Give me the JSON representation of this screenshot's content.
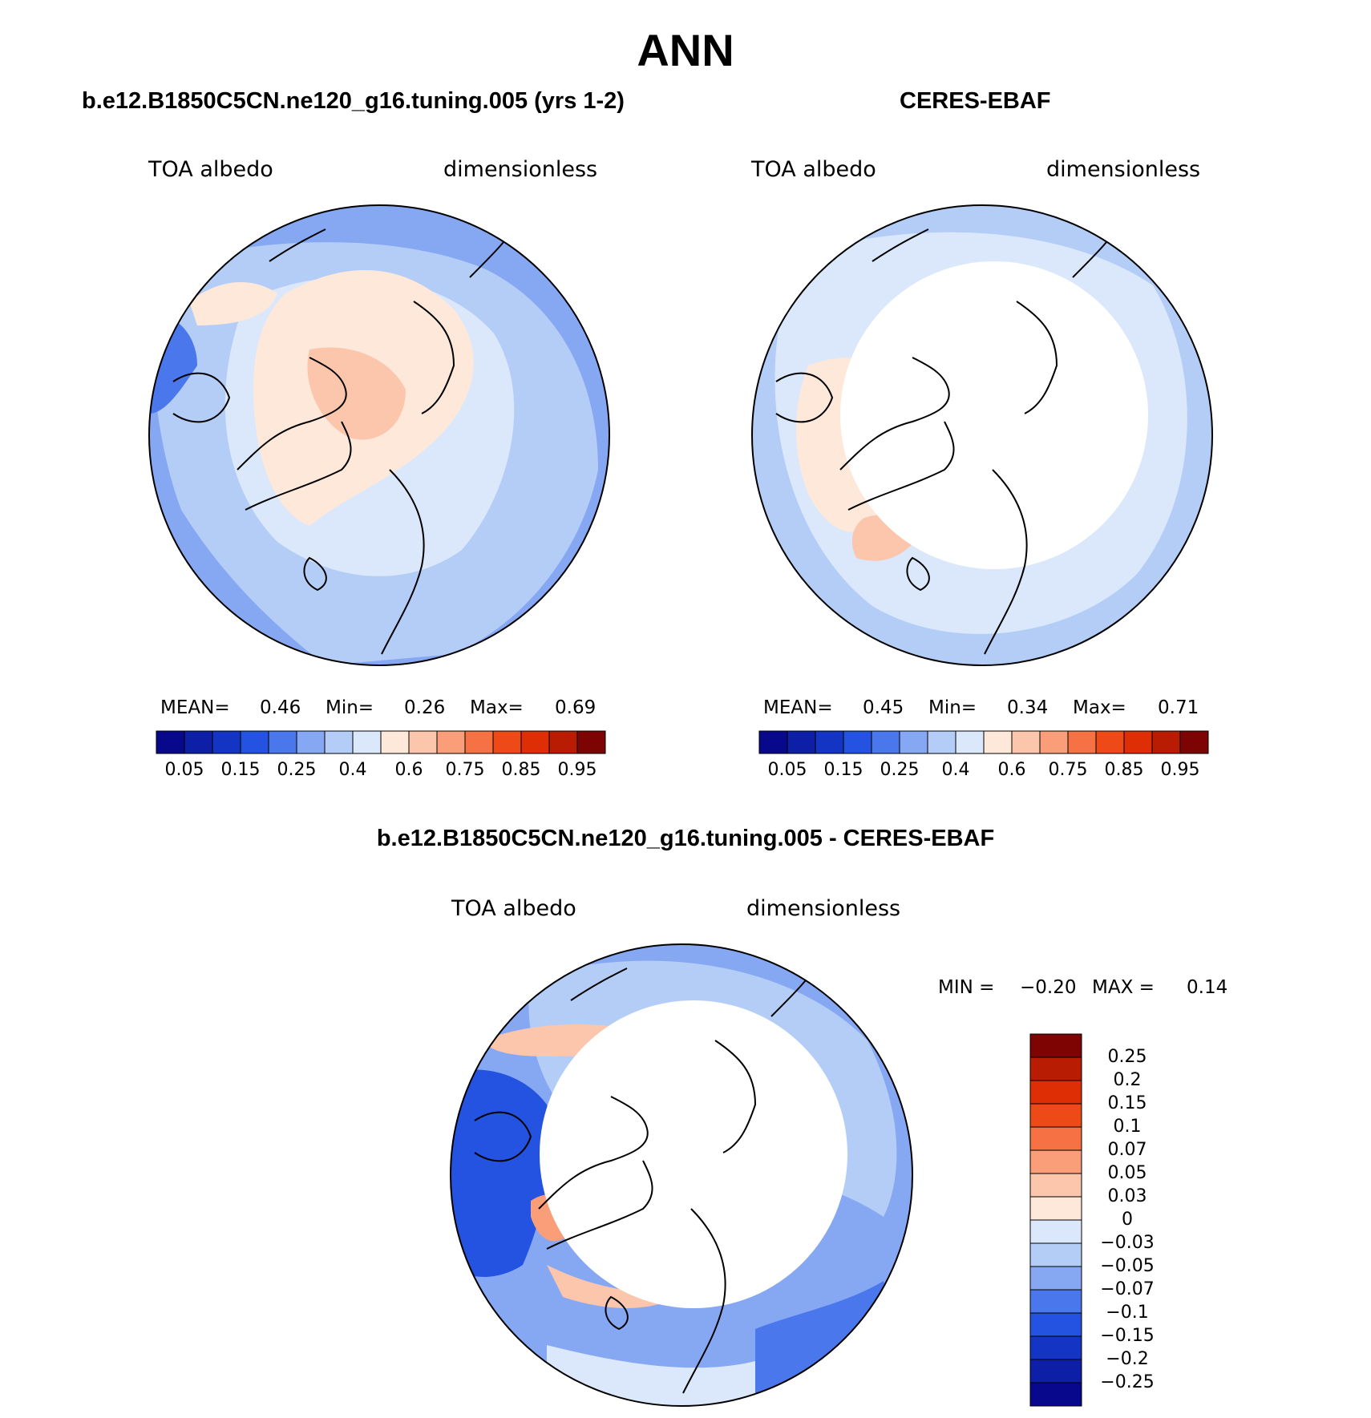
{
  "title": "ANN",
  "panels": [
    {
      "title": "b.e12.B1850C5CN.ne120_g16.tuning.005 (yrs 1-2)",
      "variable": "TOA albedo",
      "units": "dimensionless",
      "stats": {
        "mean_label": "MEAN=",
        "mean": "0.46",
        "min_label": "Min=",
        "min": "0.26",
        "max_label": "Max=",
        "max": "0.69"
      }
    },
    {
      "title": "CERES-EBAF",
      "variable": "TOA albedo",
      "units": "dimensionless",
      "stats": {
        "mean_label": "MEAN=",
        "mean": "0.45",
        "min_label": "Min=",
        "min": "0.34",
        "max_label": "Max=",
        "max": "0.71"
      }
    },
    {
      "title": "b.e12.B1850C5CN.ne120_g16.tuning.005 - CERES-EBAF",
      "variable": "TOA albedo",
      "units": "dimensionless",
      "stats": {
        "min_label": "MIN =",
        "min": "−0.20",
        "max_label": "MAX =",
        "max": "0.14"
      }
    }
  ],
  "colorbars": {
    "albedo": {
      "labels": [
        "0.05",
        "0.15",
        "0.25",
        "0.4",
        "0.6",
        "0.75",
        "0.85",
        "0.95"
      ],
      "colors": [
        "#08088c",
        "#0c1fa6",
        "#1434c4",
        "#2353e0",
        "#4a78ec",
        "#86a8f3",
        "#b4cdf7",
        "#dbe8fb",
        "#fde8da",
        "#fbc6ac",
        "#f99e78",
        "#f67245",
        "#ee4a18",
        "#de2e05",
        "#b81c03",
        "#7e0303"
      ]
    },
    "diff": {
      "labels": [
        "0.25",
        "0.2",
        "0.15",
        "0.1",
        "0.07",
        "0.05",
        "0.03",
        "0",
        "−0.03",
        "−0.05",
        "−0.07",
        "−0.1",
        "−0.15",
        "−0.2",
        "−0.25"
      ],
      "colors": [
        "#7e0303",
        "#b81c03",
        "#de2e05",
        "#ee4a18",
        "#f67245",
        "#f99e78",
        "#fbc6ac",
        "#fde8da",
        "#dbe8fb",
        "#b4cdf7",
        "#86a8f3",
        "#4a78ec",
        "#2353e0",
        "#1434c4",
        "#0c1fa6",
        "#08088c"
      ]
    }
  }
}
